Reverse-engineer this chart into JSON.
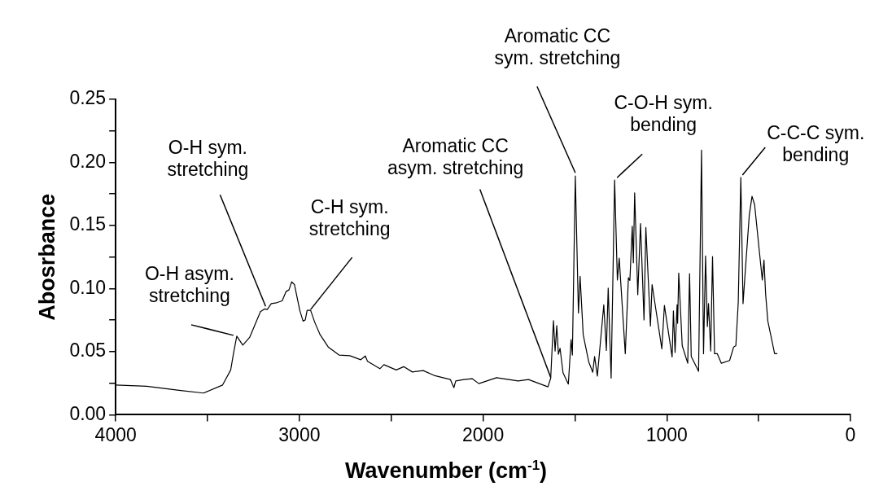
{
  "chart_data": {
    "type": "line",
    "xlabel": "Wavenumber (cm$^{-1}$)",
    "ylabel": "Abosrbance",
    "xlim": [
      4000,
      0
    ],
    "xticks": [
      4000,
      {
        "value": 3500,
        "label": null
      },
      3000,
      {
        "value": 2500,
        "label": null
      },
      2000,
      {
        "value": 1500,
        "label": null
      },
      1000,
      {
        "value": 500,
        "label": null
      },
      0
    ],
    "ylim": [
      0,
      0.25
    ],
    "yticks": [
      {
        "value": 0,
        "label": "0.00"
      },
      {
        "value": 0.025,
        "label": null
      },
      {
        "value": 0.05,
        "label": "0.05"
      },
      {
        "value": 0.075,
        "label": null
      },
      {
        "value": 0.1,
        "label": "0.10"
      },
      {
        "value": 0.125,
        "label": null
      },
      {
        "value": 0.15,
        "label": "0.15"
      },
      {
        "value": 0.175,
        "label": null
      },
      {
        "value": 0.2,
        "label": "0.20"
      },
      {
        "value": 0.225,
        "label": null
      },
      {
        "value": 0.25,
        "label": "0.25"
      }
    ],
    "grid": false,
    "legend": false,
    "marker": "none",
    "line_style": "solid",
    "series": [
      {
        "color": "#000000",
        "x": [
          4000,
          3832,
          3655,
          3522,
          3418,
          3374,
          3359,
          3341,
          3308,
          3271,
          3212,
          3190,
          3175,
          3153,
          3124,
          3094,
          3072,
          3057,
          3042,
          3027,
          2998,
          2980,
          2968,
          2958,
          2939,
          2916,
          2887,
          2843,
          2784,
          2725,
          2666,
          2641,
          2629,
          2562,
          2540,
          2473,
          2432,
          2385,
          2326,
          2267,
          2178,
          2159,
          2149,
          2104,
          2060,
          2023,
          1927,
          1809,
          1753,
          1647,
          1632,
          1617,
          1608,
          1599,
          1590,
          1581,
          1565,
          1536,
          1521,
          1514,
          1498,
          1481,
          1472,
          1455,
          1425,
          1403,
          1393,
          1378,
          1343,
          1329,
          1319,
          1303,
          1284,
          1269,
          1259,
          1226,
          1209,
          1201,
          1188,
          1182,
          1175,
          1158,
          1143,
          1124,
          1114,
          1089,
          1080,
          1027,
          1013,
          971,
          964,
          955,
          944,
          941,
          935,
          916,
          886,
          876,
          867,
          827,
          811,
          800,
          789,
          779,
          773,
          761,
          751,
          740,
          725,
          703,
          658,
          636,
          624,
          611,
          597,
          585,
          569,
          551,
          536,
          522,
          495,
          480,
          471,
          462,
          450,
          413,
          398
        ],
        "values": [
          0.0236,
          0.0226,
          0.0194,
          0.0172,
          0.0236,
          0.0355,
          0.0484,
          0.0623,
          0.0552,
          0.0613,
          0.0817,
          0.0839,
          0.0834,
          0.0881,
          0.0888,
          0.0903,
          0.0978,
          0.0989,
          0.1054,
          0.1032,
          0.0828,
          0.0742,
          0.0752,
          0.0828,
          0.0828,
          0.0731,
          0.0634,
          0.0537,
          0.0473,
          0.0468,
          0.0436,
          0.0466,
          0.0423,
          0.0365,
          0.0397,
          0.0355,
          0.0381,
          0.0339,
          0.035,
          0.0312,
          0.0279,
          0.0215,
          0.0268,
          0.0279,
          0.0286,
          0.0247,
          0.0294,
          0.0268,
          0.0279,
          0.0221,
          0.029,
          0.0746,
          0.0505,
          0.0707,
          0.0479,
          0.0527,
          0.0333,
          0.0243,
          0.0596,
          0.0473,
          0.1892,
          0.0806,
          0.1097,
          0.0634,
          0.0419,
          0.0337,
          0.0462,
          0.0307,
          0.0871,
          0.051,
          0.1004,
          0.029,
          0.186,
          0.1068,
          0.1241,
          0.0484,
          0.1086,
          0.1065,
          0.1494,
          0.1204,
          0.1759,
          0.0952,
          0.1516,
          0.0752,
          0.1484,
          0.0703,
          0.1032,
          0.0523,
          0.0866,
          0.0458,
          0.0823,
          0.0494,
          0.0871,
          0.0725,
          0.1123,
          0.0548,
          0.0408,
          0.1118,
          0.0462,
          0.0344,
          0.2097,
          0.0484,
          0.1258,
          0.0699,
          0.0881,
          0.0505,
          0.1254,
          0.0484,
          0.0484,
          0.0408,
          0.043,
          0.0537,
          0.0548,
          0.0892,
          0.1881,
          0.0881,
          0.1215,
          0.1581,
          0.1731,
          0.1666,
          0.1279,
          0.1068,
          0.1226,
          0.0957,
          0.0742,
          0.0484,
          0.0484
        ]
      }
    ],
    "annotations": [
      {
        "text": "O-H asym.\nstretching",
        "x": 3341,
        "y": 0.0623
      },
      {
        "text": "O-H sym.\nstretching",
        "x": 3175,
        "y": 0.0834
      },
      {
        "text": "C-H sym.\nstretching",
        "x": 2939,
        "y": 0.0828
      },
      {
        "text": "Aromatic CC\nasym. stretching",
        "x": 1632,
        "y": 0.029
      },
      {
        "text": "Aromatic CC\nsym. stretching",
        "x": 1498,
        "y": 0.1892
      },
      {
        "text": "C-O-H sym.\nbending",
        "x": 1284,
        "y": 0.186
      },
      {
        "text": "C-C-C sym.\nbending",
        "x": 597,
        "y": 0.1881
      }
    ]
  }
}
